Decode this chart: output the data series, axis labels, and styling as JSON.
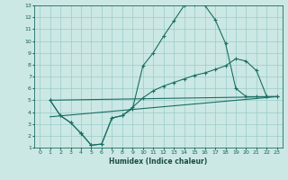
{
  "xlabel": "Humidex (Indice chaleur)",
  "bg_color": "#cce8e4",
  "grid_color": "#99ccc8",
  "line_color": "#1a6e64",
  "xlim": [
    -0.5,
    23.5
  ],
  "ylim": [
    1,
    13
  ],
  "xticks": [
    0,
    1,
    2,
    3,
    4,
    5,
    6,
    7,
    8,
    9,
    10,
    11,
    12,
    13,
    14,
    15,
    16,
    17,
    18,
    19,
    20,
    21,
    22,
    23
  ],
  "yticks": [
    1,
    2,
    3,
    4,
    5,
    6,
    7,
    8,
    9,
    10,
    11,
    12,
    13
  ],
  "line1_x": [
    1,
    2,
    3,
    4,
    4,
    5,
    6,
    7,
    8,
    9,
    10,
    11,
    12,
    13,
    14,
    15,
    16,
    17,
    18,
    19,
    20,
    21,
    22,
    23
  ],
  "line1_y": [
    5.0,
    3.7,
    3.1,
    2.2,
    2.2,
    1.2,
    1.3,
    3.5,
    3.7,
    4.3,
    7.9,
    9.0,
    10.4,
    11.7,
    13.0,
    13.1,
    13.0,
    11.8,
    9.8,
    6.0,
    5.3,
    5.3,
    5.3,
    5.3
  ],
  "line2_x": [
    1,
    2,
    3,
    4,
    5,
    6,
    7,
    8,
    9,
    10,
    11,
    12,
    13,
    14,
    15,
    16,
    17,
    18,
    19,
    20,
    21,
    22,
    23
  ],
  "line2_y": [
    5.0,
    3.7,
    3.1,
    2.2,
    1.2,
    1.3,
    3.5,
    3.7,
    4.4,
    5.2,
    5.8,
    6.2,
    6.5,
    6.8,
    7.1,
    7.3,
    7.6,
    7.9,
    8.5,
    8.3,
    7.5,
    5.3,
    5.3
  ],
  "line3_x": [
    1,
    23
  ],
  "line3_y": [
    5.0,
    5.3
  ],
  "line4_x": [
    1,
    23
  ],
  "line4_y": [
    3.6,
    5.3
  ]
}
